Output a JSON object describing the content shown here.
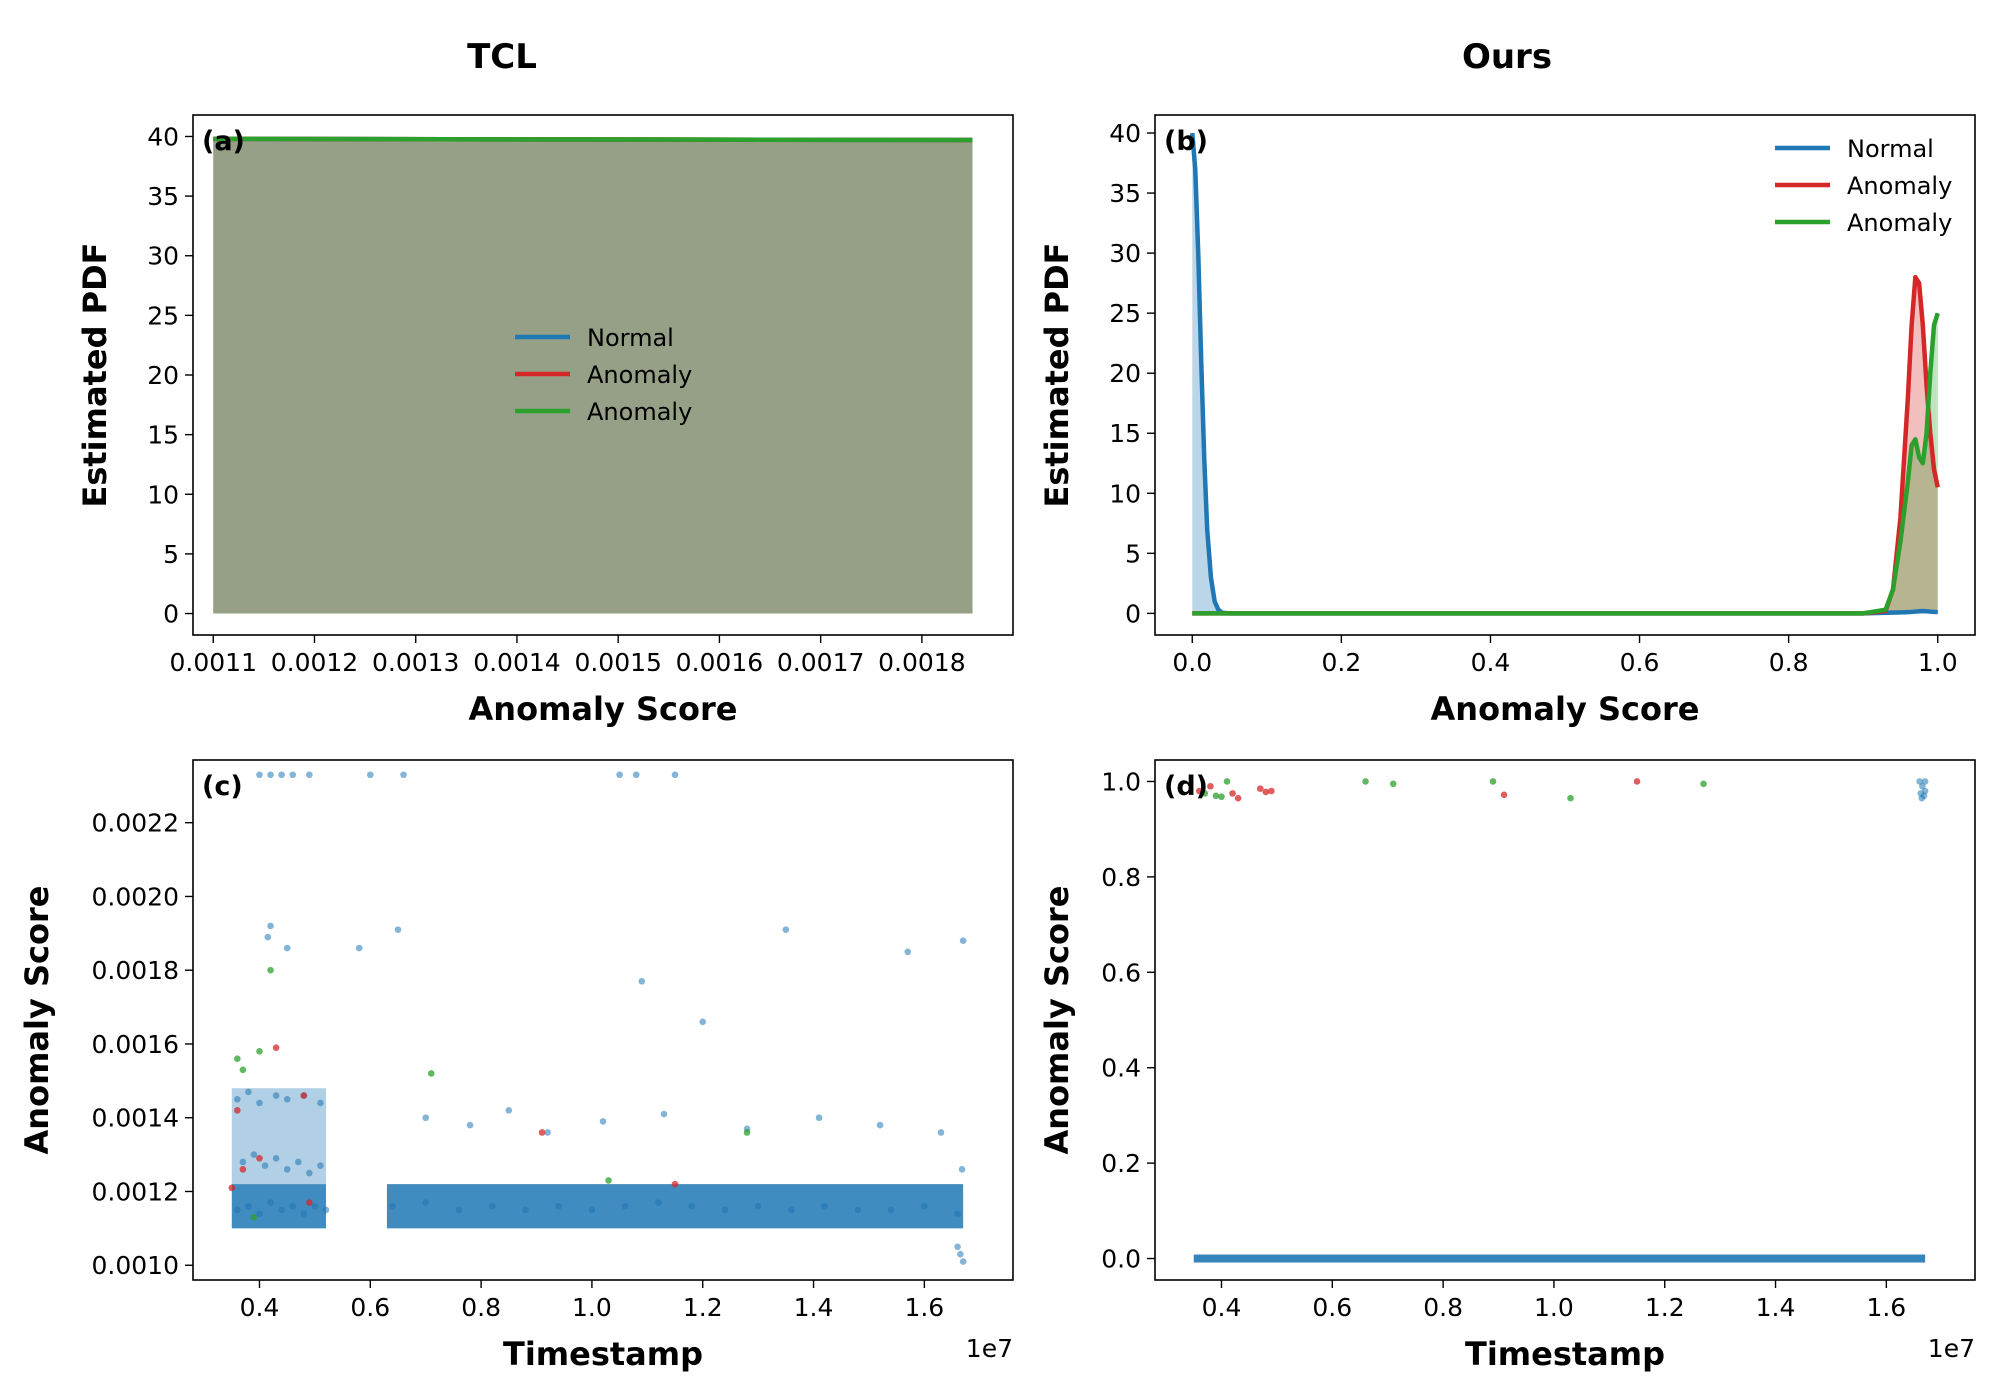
{
  "figure": {
    "col_titles": [
      "TCL",
      "Ours"
    ]
  },
  "chart_data": [
    {
      "id": "a",
      "panel_label": "(a)",
      "type": "area",
      "title": "TCL",
      "xlabel": "Anomaly Score",
      "ylabel": "Estimated PDF",
      "xlim": [
        0.00108,
        0.00189
      ],
      "ylim": [
        -1.8,
        41.8
      ],
      "xticks": [
        0.0011,
        0.0012,
        0.0013,
        0.0014,
        0.0015,
        0.0016,
        0.0017,
        0.0018
      ],
      "xtick_labels": [
        "0.0011",
        "0.0012",
        "0.0013",
        "0.0014",
        "0.0015",
        "0.0016",
        "0.0017",
        "0.0018"
      ],
      "yticks": [
        0,
        5,
        10,
        15,
        20,
        25,
        30,
        35,
        40
      ],
      "ytick_labels": [
        "0",
        "5",
        "10",
        "15",
        "20",
        "25",
        "30",
        "35",
        "40"
      ],
      "legend": {
        "placement": "center",
        "entries": [
          "Normal",
          "Anomaly",
          "Anomaly"
        ]
      },
      "series": [
        {
          "name": "Normal",
          "color": "#1f77b4",
          "x": [
            0.0011,
            0.00185
          ],
          "y": [
            39.8,
            39.7
          ]
        },
        {
          "name": "Anomaly",
          "color": "#d62728",
          "x": [
            0.0011,
            0.00185
          ],
          "y": [
            39.8,
            39.7
          ]
        },
        {
          "name": "Anomaly",
          "color": "#2ca02c",
          "x": [
            0.0011,
            0.00185
          ],
          "y": [
            39.8,
            39.7
          ]
        }
      ]
    },
    {
      "id": "b",
      "panel_label": "(b)",
      "type": "area",
      "title": "Ours",
      "xlabel": "Anomaly Score",
      "ylabel": "Estimated PDF",
      "xlim": [
        -0.05,
        1.05
      ],
      "ylim": [
        -1.8,
        41.5
      ],
      "xticks": [
        0.0,
        0.2,
        0.4,
        0.6,
        0.8,
        1.0
      ],
      "xtick_labels": [
        "0.0",
        "0.2",
        "0.4",
        "0.6",
        "0.8",
        "1.0"
      ],
      "yticks": [
        0,
        5,
        10,
        15,
        20,
        25,
        30,
        35,
        40
      ],
      "ytick_labels": [
        "0",
        "5",
        "10",
        "15",
        "20",
        "25",
        "30",
        "35",
        "40"
      ],
      "legend": {
        "placement": "upper right",
        "entries": [
          "Normal",
          "Anomaly",
          "Anomaly"
        ]
      },
      "series": [
        {
          "name": "Normal",
          "color": "#1f77b4",
          "x": [
            0.0,
            0.004,
            0.008,
            0.012,
            0.016,
            0.02,
            0.025,
            0.03,
            0.035,
            0.04,
            0.05,
            0.1,
            0.5,
            0.9,
            0.96,
            0.98,
            1.0
          ],
          "y": [
            40,
            37,
            30,
            21,
            13,
            7,
            3,
            1,
            0.3,
            0.05,
            0,
            0,
            0,
            0,
            0.1,
            0.2,
            0.1
          ]
        },
        {
          "name": "Anomaly",
          "color": "#d62728",
          "x": [
            0.0,
            0.5,
            0.9,
            0.93,
            0.94,
            0.95,
            0.96,
            0.965,
            0.97,
            0.975,
            0.98,
            0.985,
            0.99,
            0.995,
            1.0
          ],
          "y": [
            0,
            0,
            0,
            0.2,
            2,
            8,
            18,
            24,
            28,
            27.5,
            24,
            19,
            15,
            12,
            10.5
          ]
        },
        {
          "name": "Anomaly",
          "color": "#2ca02c",
          "x": [
            0.0,
            0.5,
            0.9,
            0.93,
            0.94,
            0.95,
            0.96,
            0.965,
            0.97,
            0.975,
            0.98,
            0.985,
            0.99,
            0.995,
            1.0
          ],
          "y": [
            0,
            0,
            0,
            0.3,
            2,
            6,
            11,
            14,
            14.5,
            13,
            12.5,
            15,
            20,
            24,
            25
          ]
        }
      ]
    },
    {
      "id": "c",
      "panel_label": "(c)",
      "type": "scatter",
      "xlabel": "Timestamp",
      "ylabel": "Anomaly Score",
      "x_offset_label": "1e7",
      "xlim": [
        0.28,
        1.76
      ],
      "ylim": [
        0.00096,
        0.00237
      ],
      "xticks": [
        0.4,
        0.6,
        0.8,
        1.0,
        1.2,
        1.4,
        1.6
      ],
      "xtick_labels": [
        "0.4",
        "0.6",
        "0.8",
        "1.0",
        "1.2",
        "1.4",
        "1.6"
      ],
      "yticks": [
        0.001,
        0.0012,
        0.0014,
        0.0016,
        0.0018,
        0.002,
        0.0022
      ],
      "ytick_labels": [
        "0.0010",
        "0.0012",
        "0.0014",
        "0.0016",
        "0.0018",
        "0.0020",
        "0.0022"
      ],
      "series": [
        {
          "name": "Normal",
          "color": "#1f77b4",
          "x": [
            0.36,
            0.38,
            0.4,
            0.42,
            0.44,
            0.46,
            0.48,
            0.5,
            0.52,
            0.64,
            0.7,
            0.76,
            0.82,
            0.88,
            0.94,
            1.0,
            1.06,
            1.12,
            1.18,
            1.24,
            1.3,
            1.36,
            1.42,
            1.48,
            1.54,
            1.6,
            1.66,
            0.37,
            0.39,
            0.41,
            0.43,
            0.45,
            0.47,
            0.49,
            0.51,
            0.36,
            0.38,
            0.4,
            0.43,
            0.45,
            0.48,
            0.51,
            0.4,
            0.42,
            0.44,
            0.46,
            0.49,
            0.6,
            0.66,
            1.05,
            1.08,
            1.15,
            0.42,
            0.415,
            0.45,
            0.58,
            0.65,
            1.09,
            1.35,
            1.57,
            1.67,
            1.2,
            0.7,
            0.78,
            0.85,
            0.92,
            1.02,
            1.13,
            1.28,
            1.41,
            1.52,
            1.63,
            1.66,
            1.665,
            1.67,
            1.668
          ],
          "y": [
            0.00115,
            0.00116,
            0.00114,
            0.00117,
            0.00115,
            0.00116,
            0.00114,
            0.00116,
            0.00115,
            0.00116,
            0.00117,
            0.00115,
            0.00116,
            0.00115,
            0.00116,
            0.00115,
            0.00116,
            0.00117,
            0.00116,
            0.00115,
            0.00116,
            0.00115,
            0.00116,
            0.00115,
            0.00115,
            0.00116,
            0.00114,
            0.00128,
            0.0013,
            0.00127,
            0.00129,
            0.00126,
            0.00128,
            0.00125,
            0.00127,
            0.00145,
            0.00147,
            0.00144,
            0.00146,
            0.00145,
            0.00146,
            0.00144,
            0.00233,
            0.00233,
            0.00233,
            0.00233,
            0.00233,
            0.00233,
            0.00233,
            0.00233,
            0.00233,
            0.00233,
            0.00192,
            0.00189,
            0.00186,
            0.00186,
            0.00191,
            0.00177,
            0.00191,
            0.00185,
            0.00188,
            0.00166,
            0.0014,
            0.00138,
            0.00142,
            0.00136,
            0.00139,
            0.00141,
            0.00137,
            0.0014,
            0.00138,
            0.00136,
            0.00105,
            0.00103,
            0.00101,
            0.00126
          ]
        },
        {
          "name": "Anomaly",
          "color": "#d62728",
          "x": [
            0.35,
            0.36,
            0.37,
            0.4,
            0.43,
            0.48,
            0.49,
            0.91,
            1.15
          ],
          "y": [
            0.00121,
            0.00142,
            0.00126,
            0.00129,
            0.00159,
            0.00146,
            0.00117,
            0.00136,
            0.00122
          ]
        },
        {
          "name": "Anomaly",
          "color": "#2ca02c",
          "x": [
            0.36,
            0.37,
            0.39,
            0.42,
            0.71,
            1.03,
            1.28,
            0.4
          ],
          "y": [
            0.00156,
            0.00153,
            0.00113,
            0.0018,
            0.00152,
            0.00123,
            0.00136,
            0.00158
          ]
        }
      ]
    },
    {
      "id": "d",
      "panel_label": "(d)",
      "type": "scatter",
      "xlabel": "Timestamp",
      "ylabel": "Anomaly Score",
      "x_offset_label": "1e7",
      "xlim": [
        0.28,
        1.76
      ],
      "ylim": [
        -0.045,
        1.045
      ],
      "xticks": [
        0.4,
        0.6,
        0.8,
        1.0,
        1.2,
        1.4,
        1.6
      ],
      "xtick_labels": [
        "0.4",
        "0.6",
        "0.8",
        "1.0",
        "1.2",
        "1.4",
        "1.6"
      ],
      "yticks": [
        0.0,
        0.2,
        0.4,
        0.6,
        0.8,
        1.0
      ],
      "ytick_labels": [
        "0.0",
        "0.2",
        "0.4",
        "0.6",
        "0.8",
        "1.0"
      ],
      "series": [
        {
          "name": "Normal",
          "color": "#1f77b4",
          "x": [
            1.66,
            1.665,
            1.67,
            1.668,
            1.662,
            1.67,
            1.664
          ],
          "y": [
            1.0,
            0.99,
            0.98,
            0.97,
            0.975,
            1.0,
            0.965
          ]
        },
        {
          "name": "Anomaly",
          "color": "#d62728",
          "x": [
            0.36,
            0.38,
            0.42,
            0.43,
            0.47,
            0.48,
            0.49,
            0.91,
            1.15
          ],
          "y": [
            0.98,
            0.99,
            0.975,
            0.965,
            0.985,
            0.978,
            0.98,
            0.972,
            1.0
          ]
        },
        {
          "name": "Anomaly",
          "color": "#2ca02c",
          "x": [
            0.37,
            0.39,
            0.4,
            0.41,
            0.66,
            0.71,
            0.89,
            1.03,
            1.27
          ],
          "y": [
            0.975,
            0.97,
            0.968,
            1.0,
            1.0,
            0.995,
            1.0,
            0.965,
            0.995
          ]
        }
      ],
      "baseline_band": {
        "name": "Normal",
        "x_range": [
          0.35,
          1.67
        ],
        "y": 0.0
      }
    }
  ]
}
